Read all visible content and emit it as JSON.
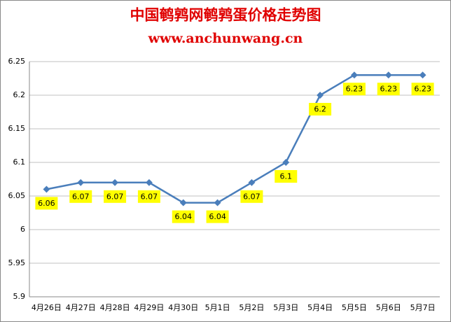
{
  "chart_data": {
    "type": "line",
    "title": "中国鹌鹑网鹌鹑蛋价格走势图",
    "subtitle": "www.anchunwang.cn",
    "categories": [
      "4月26日",
      "4月27日",
      "4月28日",
      "4月29日",
      "4月30日",
      "5月1日",
      "5月2日",
      "5月3日",
      "5月4日",
      "5月5日",
      "5月6日",
      "5月7日"
    ],
    "values": [
      6.06,
      6.07,
      6.07,
      6.07,
      6.04,
      6.04,
      6.07,
      6.1,
      6.2,
      6.23,
      6.23,
      6.23
    ],
    "color": "#4a7ebb",
    "ylim": [
      5.9,
      6.25
    ],
    "yticks": [
      5.9,
      5.95,
      6,
      6.05,
      6.1,
      6.15,
      6.2,
      6.25
    ],
    "grid": true
  }
}
